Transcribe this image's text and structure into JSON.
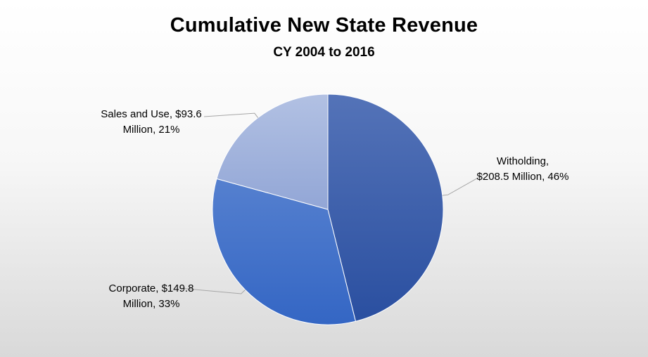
{
  "chart_data": {
    "type": "pie",
    "title": "Cumulative New State Revenue",
    "subtitle": "CY 2004 to 2016",
    "unit": "Million",
    "slices": [
      {
        "name": "Witholding",
        "value": 208.5,
        "percent": 46,
        "color": "#3658a8",
        "label_line1": "Witholding,",
        "label_line2": "$208.5 Million, 46%"
      },
      {
        "name": "Corporate",
        "value": 149.8,
        "percent": 33,
        "color": "#4472c4",
        "label_line1": "Corporate, $149.8",
        "label_line2": "Million, 33%"
      },
      {
        "name": "Sales and Use",
        "value": 93.6,
        "percent": 21,
        "color": "#9fb2dc",
        "label_line1": "Sales and Use, $93.6",
        "label_line2": "Million, 21%"
      }
    ],
    "start_angle_deg": 0,
    "direction": "clockwise",
    "leader_lines": true
  }
}
